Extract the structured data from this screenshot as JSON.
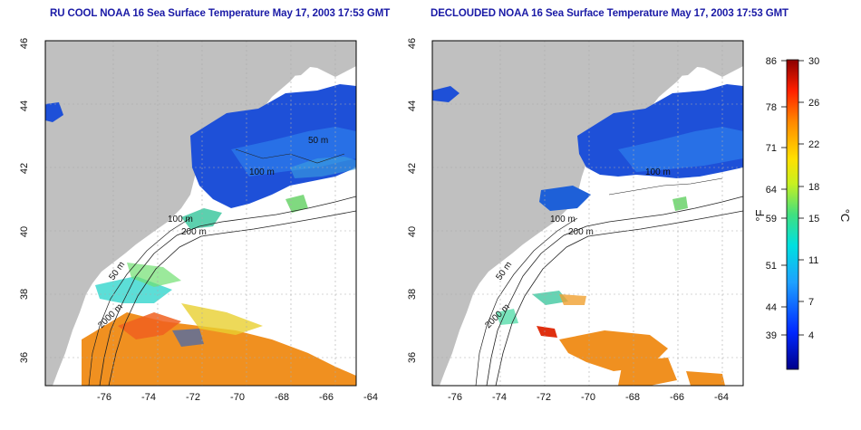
{
  "left_panel": {
    "title": "RU COOL NOAA 16 Sea Surface Temperature May 17, 2003 17:53 GMT",
    "contour_labels": [
      "200 m",
      "50 m",
      "2000 m",
      "100 m",
      "50 m",
      "100 m"
    ]
  },
  "right_panel": {
    "title": "DECLOUDED NOAA 16 Sea Surface Temperature May 17, 2003 17:53 GMT",
    "contour_labels": [
      "200 m",
      "50 m",
      "2000 m",
      "100 m",
      "100 m"
    ]
  },
  "axes": {
    "x_ticks": [
      "-76",
      "-74",
      "-72",
      "-70",
      "-68",
      "-66",
      "-64"
    ],
    "y_ticks": [
      "46",
      "44",
      "42",
      "40",
      "38",
      "36"
    ]
  },
  "colorbar": {
    "fahrenheit_unit": "°F",
    "celsius_unit": "°C",
    "fahrenheit_labels": [
      "86",
      "78",
      "71",
      "64",
      "59",
      "51",
      "44",
      "39"
    ],
    "celsius_labels": [
      "30",
      "26",
      "22",
      "18",
      "15",
      "11",
      "7",
      "4"
    ]
  },
  "colors": {
    "land": "#c0c0c0",
    "cloud": "#ffffff",
    "cold_water": "#1e50d8",
    "warm_water": "#f09020",
    "title_text": "#1a1aa6"
  }
}
